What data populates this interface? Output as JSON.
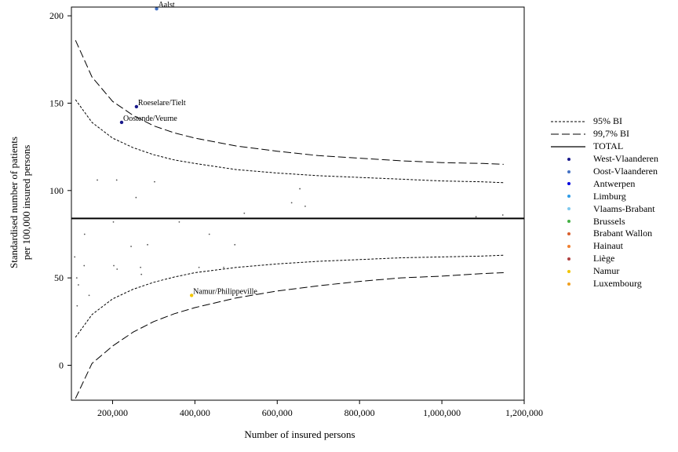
{
  "chart_data": {
    "type": "scatter",
    "title": "",
    "xlabel": "Number of insured persons",
    "ylabel_lines": [
      "Standardised number of patients",
      "per 100,000 insured persons"
    ],
    "xlim": [
      100000,
      1200000
    ],
    "ylim": [
      -20,
      205
    ],
    "x_ticks": [
      200000,
      400000,
      600000,
      800000,
      1000000,
      1200000
    ],
    "x_tick_labels": [
      "200,000",
      "400,000",
      "600,000",
      "800,000",
      "1,000,000",
      "1,200,000"
    ],
    "y_ticks": [
      0,
      50,
      100,
      150,
      200
    ],
    "y_tick_labels": [
      "0",
      "50",
      "100",
      "150",
      "200"
    ],
    "grid": false,
    "legend_position": "right",
    "reference_line": {
      "name": "TOTAL",
      "value": 84
    },
    "limits": {
      "bi95": {
        "name": "95% BI",
        "x": [
          110000,
          150000,
          200000,
          250000,
          300000,
          350000,
          400000,
          500000,
          600000,
          700000,
          800000,
          900000,
          1000000,
          1100000,
          1150000
        ],
        "upper": [
          152,
          139,
          130,
          124.5,
          120.5,
          117.5,
          115.5,
          112,
          110,
          108.5,
          107.5,
          106.5,
          105.5,
          105,
          104.5
        ],
        "lower": [
          16,
          29,
          38,
          43.5,
          47.5,
          50.5,
          53,
          56,
          58,
          59.5,
          60.5,
          61.5,
          62,
          62.5,
          63
        ]
      },
      "bi997": {
        "name": "99,7% BI",
        "x": [
          110000,
          150000,
          200000,
          250000,
          300000,
          350000,
          400000,
          500000,
          600000,
          700000,
          800000,
          900000,
          1000000,
          1100000,
          1150000
        ],
        "upper": [
          186,
          165,
          151,
          143,
          137,
          133,
          130,
          125.5,
          122.5,
          120,
          118.5,
          117,
          116,
          115.5,
          115
        ],
        "lower": [
          -19,
          1,
          11,
          19,
          25,
          29.5,
          33,
          38.5,
          42.5,
          45.5,
          48,
          50,
          51,
          52.5,
          53
        ]
      }
    },
    "highlighted_points": [
      {
        "label": "Aalst",
        "x": 307000,
        "y": 204,
        "color": "#4472c4"
      },
      {
        "label": "Roeselare/Tielt",
        "x": 258000,
        "y": 148,
        "color": "#1a1a8c"
      },
      {
        "label": "Oostende/Veurne",
        "x": 222000,
        "y": 139,
        "color": "#1a1a8c"
      },
      {
        "label": "Namur/Philippeville",
        "x": 392000,
        "y": 40,
        "color": "#f2c500"
      }
    ],
    "other_points": [
      [
        163000,
        106
      ],
      [
        210000,
        106
      ],
      [
        302000,
        105
      ],
      [
        257000,
        96
      ],
      [
        655000,
        101
      ],
      [
        635000,
        93
      ],
      [
        668000,
        91
      ],
      [
        520000,
        87
      ],
      [
        1083000,
        85
      ],
      [
        1148000,
        86
      ],
      [
        202000,
        82
      ],
      [
        362000,
        82
      ],
      [
        132000,
        75
      ],
      [
        435000,
        75
      ],
      [
        285000,
        69
      ],
      [
        245000,
        68
      ],
      [
        497000,
        69
      ],
      [
        108000,
        62
      ],
      [
        131000,
        57
      ],
      [
        203000,
        57
      ],
      [
        268000,
        56
      ],
      [
        211000,
        55
      ],
      [
        410000,
        56
      ],
      [
        470000,
        56
      ],
      [
        113000,
        50
      ],
      [
        270000,
        52
      ],
      [
        117000,
        46
      ],
      [
        143000,
        40
      ],
      [
        114000,
        34
      ]
    ],
    "series": [
      {
        "name": "West-Vlaanderen",
        "color": "#1a1a8c"
      },
      {
        "name": "Oost-Vlaanderen",
        "color": "#4472c4"
      },
      {
        "name": "Antwerpen",
        "color": "#0000e0"
      },
      {
        "name": "Limburg",
        "color": "#2e9be6"
      },
      {
        "name": "Vlaams-Brabant",
        "color": "#7ec8ee"
      },
      {
        "name": "Brussels",
        "color": "#44b044"
      },
      {
        "name": "Brabant Wallon",
        "color": "#d95f2e"
      },
      {
        "name": "Hainaut",
        "color": "#f08030"
      },
      {
        "name": "Liège",
        "color": "#b04040"
      },
      {
        "name": "Namur",
        "color": "#f2c500"
      },
      {
        "name": "Luxembourg",
        "color": "#f0a020"
      }
    ]
  },
  "legend": {
    "line_items": [
      {
        "label": "95% BI",
        "style": "short-dash"
      },
      {
        "label": "99,7% BI",
        "style": "long-dash"
      },
      {
        "label": "TOTAL",
        "style": "solid"
      }
    ]
  }
}
